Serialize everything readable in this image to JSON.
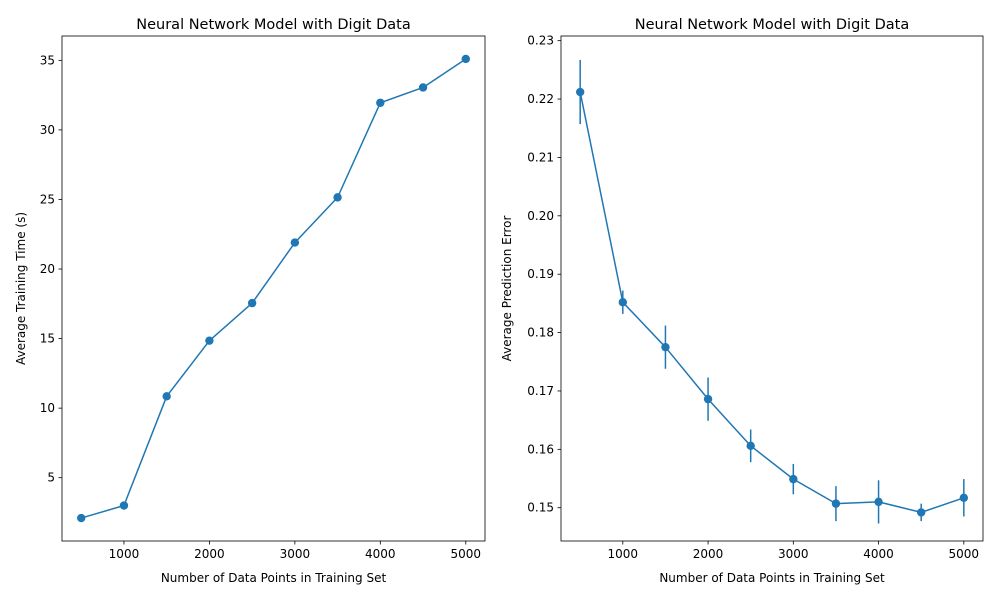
{
  "chart_data": [
    {
      "type": "line",
      "title": "Neural Network Model with Digit Data",
      "xlabel": "Number of Data Points in Training Set",
      "ylabel": "Average Training Time (s)",
      "x": [
        500,
        1000,
        1500,
        2000,
        2500,
        3000,
        3500,
        4000,
        4500,
        5000
      ],
      "series": [
        {
          "values": [
            2.1,
            3.0,
            10.85,
            14.85,
            17.55,
            21.9,
            25.15,
            31.95,
            33.05,
            35.1
          ],
          "color": "#1f77b4"
        }
      ],
      "xlim": [
        275,
        5225
      ],
      "ylim": [
        0.45,
        36.75
      ],
      "xticks": [
        1000,
        2000,
        3000,
        4000,
        5000
      ],
      "yticks": [
        5,
        10,
        15,
        20,
        25,
        30,
        35
      ],
      "ytick_labels": [
        "5",
        "10",
        "15",
        "20",
        "25",
        "30",
        "35"
      ],
      "grid": false
    },
    {
      "type": "line",
      "title": "Neural Network Model with Digit Data",
      "xlabel": "Number of Data Points in Training Set",
      "ylabel": "Average Prediction Error",
      "x": [
        500,
        1000,
        1500,
        2000,
        2500,
        3000,
        3500,
        4000,
        4500,
        5000
      ],
      "series": [
        {
          "values": [
            0.2212,
            0.1852,
            0.1775,
            0.1686,
            0.1606,
            0.1549,
            0.1507,
            0.151,
            0.1492,
            0.1517
          ],
          "error": [
            0.0055,
            0.002,
            0.0037,
            0.0037,
            0.0028,
            0.0026,
            0.003,
            0.0037,
            0.0015,
            0.0032
          ],
          "color": "#1f77b4"
        }
      ],
      "xlim": [
        275,
        5225
      ],
      "ylim": [
        0.1443,
        0.2308
      ],
      "xticks": [
        1000,
        2000,
        3000,
        4000,
        5000
      ],
      "yticks": [
        0.15,
        0.16,
        0.17,
        0.18,
        0.19,
        0.2,
        0.21,
        0.22,
        0.23
      ],
      "ytick_labels": [
        "0.15",
        "0.16",
        "0.17",
        "0.18",
        "0.19",
        "0.20",
        "0.21",
        "0.22",
        "0.23"
      ],
      "grid": false
    }
  ]
}
